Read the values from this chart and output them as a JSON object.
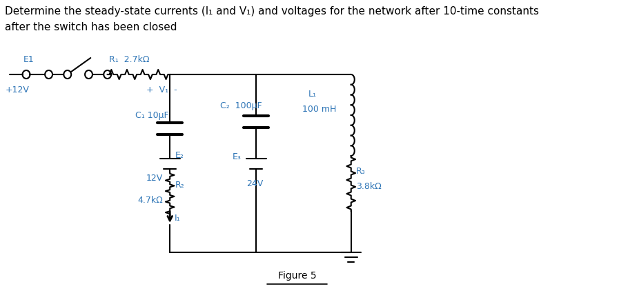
{
  "title_line1": "Determine the steady-state currents (I₁ and V₁) and voltages for the network after 10-time constants",
  "title_line2": "after the switch has been closed",
  "fig_label": "Figure 5",
  "text_color": "#2e75b6",
  "line_color": "#000000",
  "background_color": "#ffffff",
  "font_size_title": 11,
  "font_size_labels": 9,
  "E1_label": "E1",
  "E1_voltage": "+12V",
  "R1_label": "R₁  2.7kΩ",
  "C1_label": "C₁ 10μF",
  "C2_label": "C₂  100μF",
  "L1_label": "L₁",
  "L1_value": "100 mH",
  "E2_label": "E₂",
  "E2_voltage": "12V",
  "E3_label": "E₃",
  "E3_voltage": "24V",
  "R2_label": "R₂",
  "R2_value": "4.7kΩ",
  "I1_label": "I₁",
  "R3_label": "R₃",
  "R3_value": "3.8kΩ",
  "V1_label": "+  V₁  -"
}
